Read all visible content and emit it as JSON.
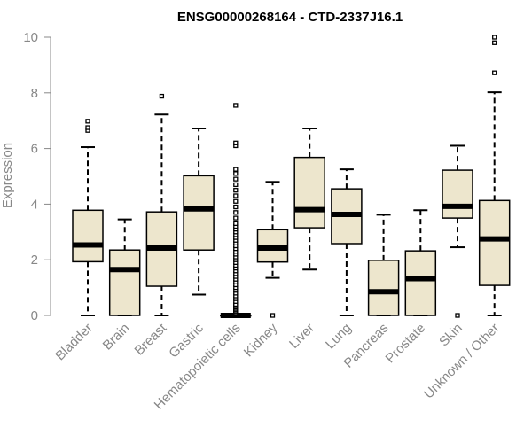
{
  "chart_data": {
    "type": "box",
    "title": "ENSG00000268164 - CTD-2337J16.1",
    "ylabel": "Expression",
    "ylim": [
      0,
      10
    ],
    "yticks": [
      0,
      2,
      4,
      6,
      8,
      10
    ],
    "colors": {
      "box_fill": "#EDE6CD",
      "stroke": "#000000",
      "axis": "#888888"
    },
    "grid": false,
    "boxes": [
      {
        "name": "Bladder",
        "min": 0,
        "q1": 1.93,
        "median": 2.53,
        "q3": 3.78,
        "max": 6.05,
        "outliers": [
          6.65,
          6.75,
          6.98
        ]
      },
      {
        "name": "Brain",
        "min": 0,
        "q1": 0,
        "median": 1.65,
        "q3": 2.35,
        "max": 3.45,
        "outliers": []
      },
      {
        "name": "Breast",
        "min": 0,
        "q1": 1.05,
        "median": 2.42,
        "q3": 3.72,
        "max": 7.22,
        "outliers": [
          7.88
        ]
      },
      {
        "name": "Gastric",
        "min": 0.75,
        "q1": 2.35,
        "median": 3.83,
        "q3": 5.02,
        "max": 6.72,
        "outliers": []
      },
      {
        "name": "Hematopoietic cells",
        "min": 0,
        "q1": 0,
        "median": 0,
        "q3": 0,
        "max": 0,
        "outliers": [
          0.05,
          0.1,
          0.15,
          0.2,
          0.25,
          0.3,
          0.35,
          0.4,
          0.5,
          0.6,
          0.7,
          0.8,
          0.9,
          1.0,
          1.1,
          1.2,
          1.3,
          1.4,
          1.5,
          1.6,
          1.7,
          1.8,
          1.9,
          2.0,
          2.1,
          2.2,
          2.3,
          2.4,
          2.5,
          2.6,
          2.7,
          2.8,
          2.9,
          3.0,
          3.1,
          3.2,
          3.3,
          3.5,
          3.7,
          3.9,
          4.1,
          4.3,
          4.5,
          4.7,
          4.9,
          5.1,
          5.25,
          6.1,
          6.2,
          7.55
        ]
      },
      {
        "name": "Kidney",
        "min": 1.35,
        "q1": 1.92,
        "median": 2.42,
        "q3": 3.08,
        "max": 4.8,
        "outliers": [
          0
        ]
      },
      {
        "name": "Liver",
        "min": 1.65,
        "q1": 3.15,
        "median": 3.8,
        "q3": 5.68,
        "max": 6.72,
        "outliers": []
      },
      {
        "name": "Lung",
        "min": 0,
        "q1": 2.58,
        "median": 3.63,
        "q3": 4.55,
        "max": 5.25,
        "outliers": []
      },
      {
        "name": "Pancreas",
        "min": 0,
        "q1": 0,
        "median": 0.85,
        "q3": 1.98,
        "max": 3.62,
        "outliers": []
      },
      {
        "name": "Prostate",
        "min": 0,
        "q1": 0,
        "median": 1.32,
        "q3": 2.32,
        "max": 3.78,
        "outliers": []
      },
      {
        "name": "Skin",
        "min": 2.45,
        "q1": 3.5,
        "median": 3.92,
        "q3": 5.22,
        "max": 6.1,
        "outliers": [
          0
        ]
      },
      {
        "name": "Unknown / Other",
        "min": 0,
        "q1": 1.08,
        "median": 2.75,
        "q3": 4.13,
        "max": 8.02,
        "outliers": [
          8.72,
          9.8,
          10.0
        ]
      }
    ]
  }
}
